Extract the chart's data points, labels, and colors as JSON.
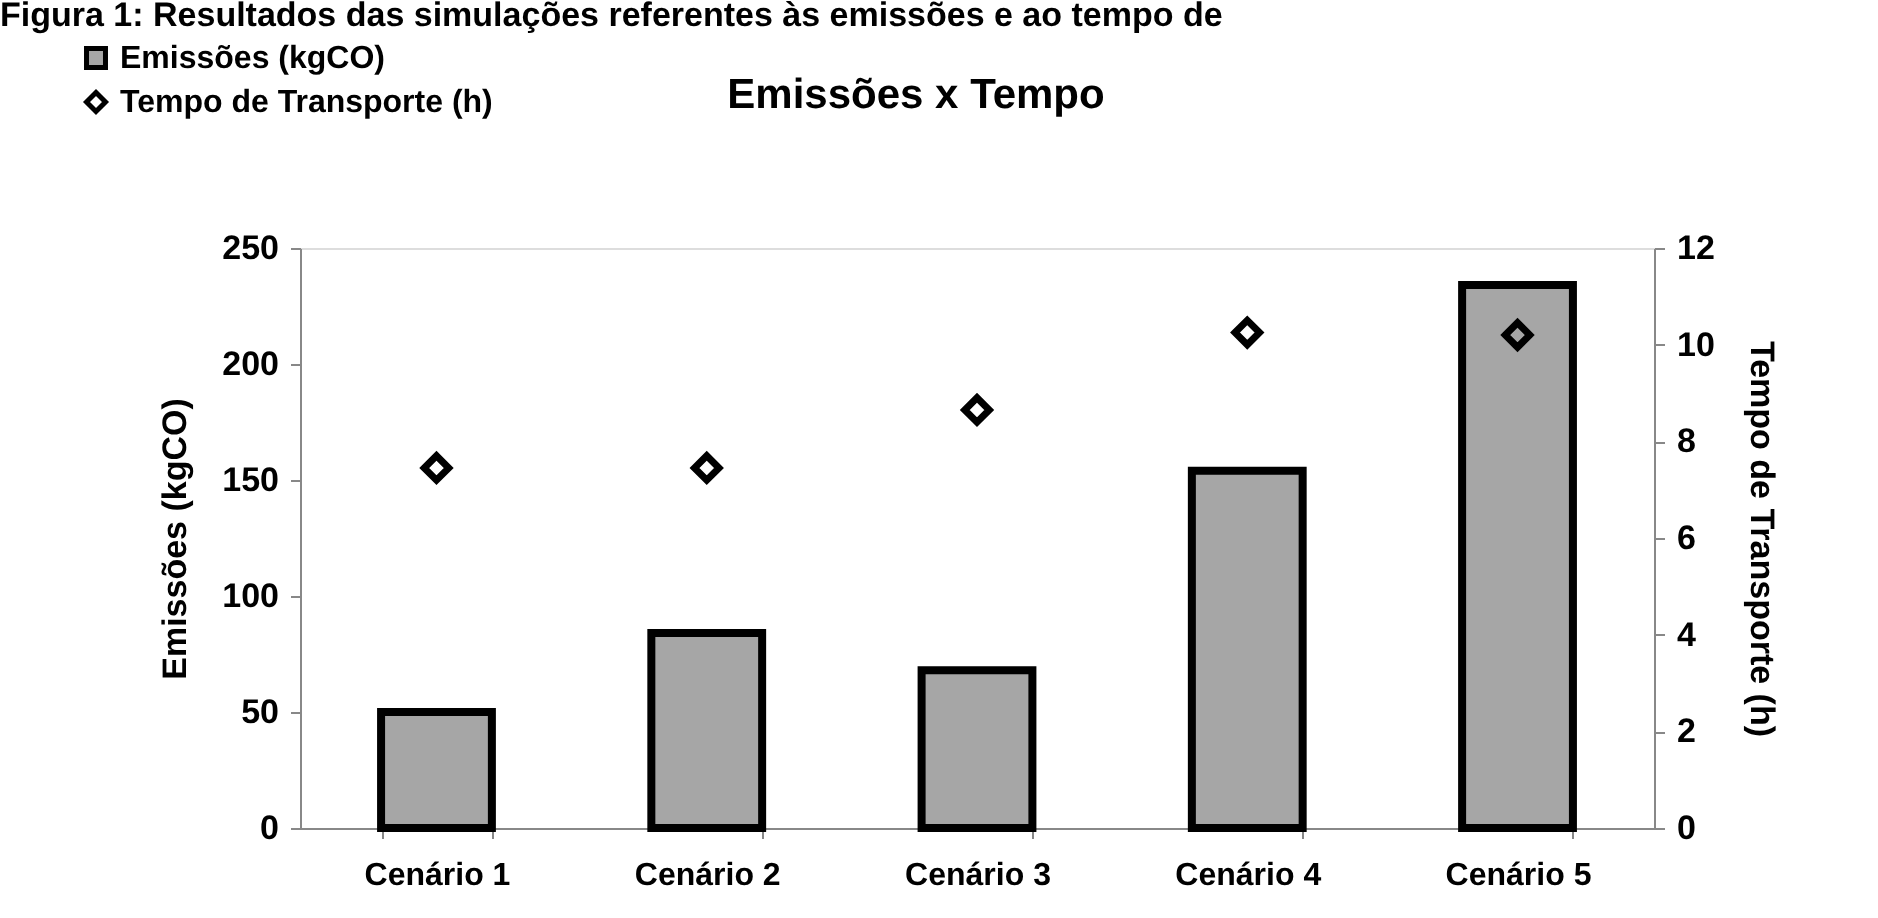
{
  "chart_data": {
    "type": "bar",
    "title": "Emissões x Tempo",
    "annotations": [
      "Figura 1: Resultados das simulações referentes às emissões e ao tempo de"
    ],
    "categories": [
      "Cenário 1",
      "Cenário 2",
      "Cenário 3",
      "Cenário 4",
      "Cenário 5"
    ],
    "ylabel": "Emissões (kgCO)",
    "y2label": "Tempo de Transporte (h)",
    "series": [
      {
        "name": "Emissões (kgCO)",
        "color": "#a6a6a6",
        "values": [
          50,
          84,
          68,
          154,
          234
        ]
      },
      {
        "name": "Tempo de Transporte (h)",
        "type": "scatter",
        "axis": "y2",
        "marker": "diamond",
        "color": "#000000",
        "values": [
          7.45,
          7.45,
          8.65,
          10.25,
          10.2
        ]
      }
    ],
    "ylim": [
      0,
      250
    ],
    "yticks": [
      0,
      50,
      100,
      150,
      200,
      250
    ],
    "y2lim": [
      0,
      12
    ],
    "y2ticks": [
      0,
      2,
      4,
      6,
      8,
      10,
      12
    ],
    "grid": false,
    "legend": "top left"
  }
}
